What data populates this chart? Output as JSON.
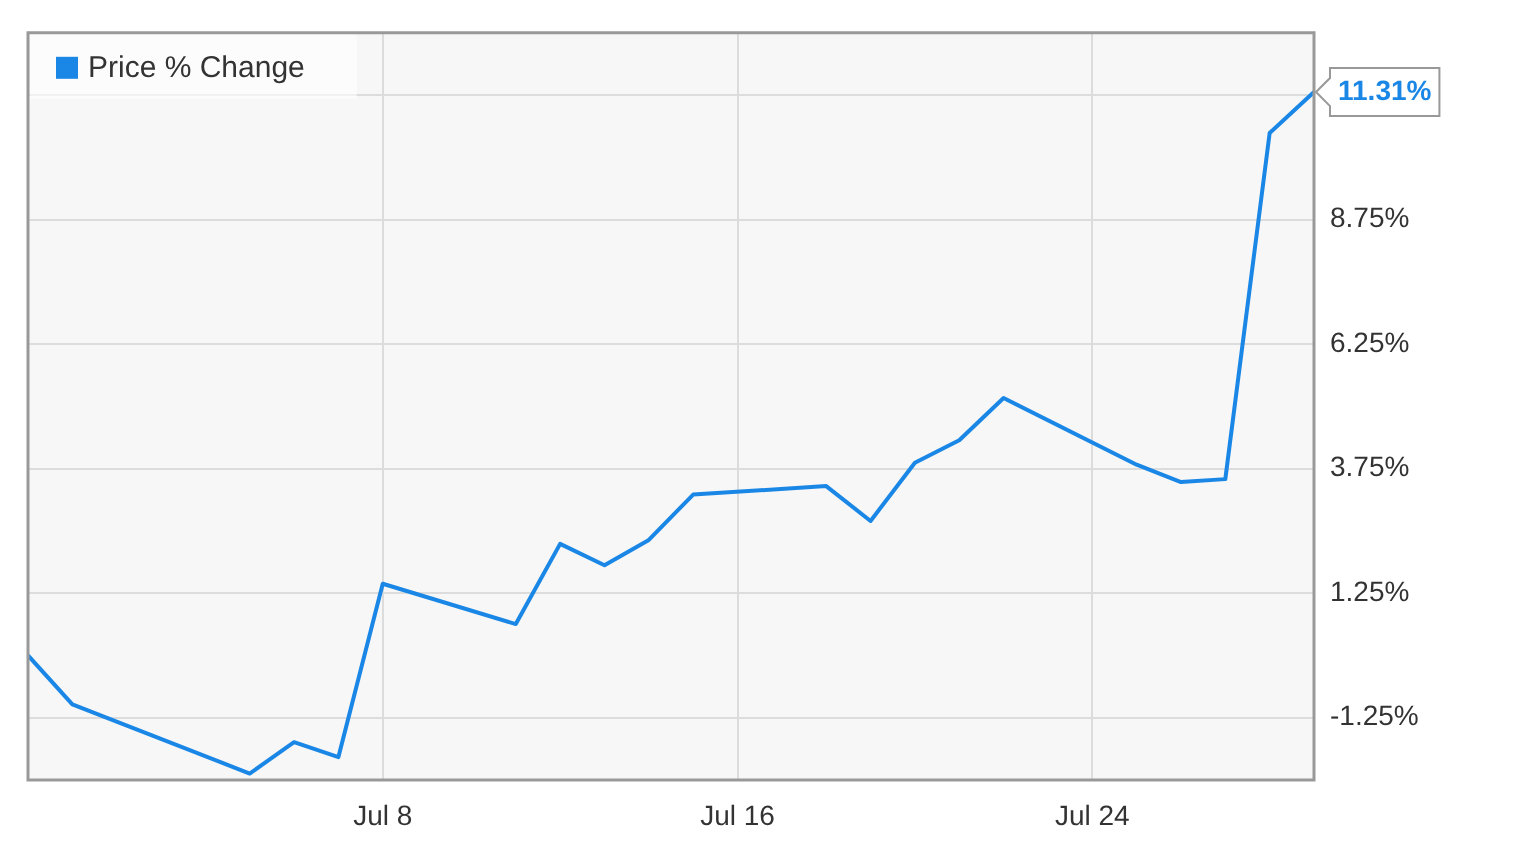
{
  "chart_data": {
    "type": "line",
    "x": [
      "--06-30",
      "--07-01",
      "--07-05",
      "--07-06",
      "--07-07",
      "--07-08",
      "--07-11",
      "--07-12",
      "--07-13",
      "--07-14",
      "--07-15",
      "--07-18",
      "--07-19",
      "--07-20",
      "--07-21",
      "--07-22",
      "--07-25",
      "--07-26",
      "--07-27",
      "--07-28",
      "--07-29"
    ],
    "series": [
      {
        "name": "Price % Change",
        "color": "#1a87e6",
        "values": [
          0.0,
          -0.98,
          -2.37,
          -1.74,
          -2.04,
          1.44,
          0.63,
          2.24,
          1.81,
          2.32,
          3.23,
          3.4,
          2.7,
          3.87,
          4.32,
          5.17,
          3.83,
          3.48,
          3.54,
          10.49,
          11.31
        ],
        "value_labels": [
          null,
          null,
          null,
          null,
          null,
          null,
          null,
          null,
          null,
          null,
          null,
          null,
          null,
          null,
          null,
          null,
          null,
          null,
          null,
          null,
          "11.31%"
        ]
      }
    ],
    "xlim": [
      "--06-30",
      "--07-29"
    ],
    "xticks": [
      {
        "value": "--07-08",
        "label": "Jul 8"
      },
      {
        "value": "--07-16",
        "label": "Jul 16"
      },
      {
        "value": "--07-24",
        "label": "Jul 24"
      }
    ],
    "ylim": [
      -2.5,
      12.5
    ],
    "yticks": [
      {
        "value": -1.25,
        "label": "-1.25%"
      },
      {
        "value": 1.25,
        "label": "1.25%"
      },
      {
        "value": 3.75,
        "label": "3.75%"
      },
      {
        "value": 6.25,
        "label": "6.25%"
      },
      {
        "value": 8.75,
        "label": "8.75%"
      },
      {
        "value": 11.25,
        "label": null
      }
    ],
    "grid": true,
    "legend": "top left",
    "marker": "none",
    "line_style": "solid"
  }
}
